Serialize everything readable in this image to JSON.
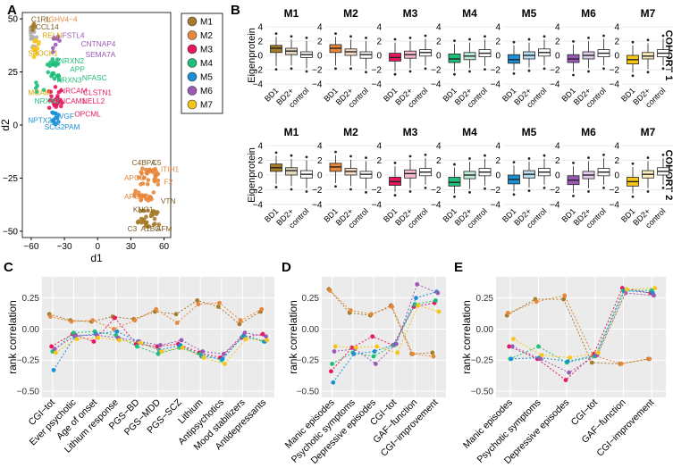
{
  "panel_labels": [
    "A",
    "B",
    "C",
    "D",
    "E"
  ],
  "colors": {
    "M1": "#a67c2a",
    "M2": "#e8873a",
    "M3": "#e8175d",
    "M4": "#1fbf7a",
    "M5": "#1a8fd6",
    "M6": "#9b59b6",
    "M7": "#f5c518",
    "grey": "#b0b0b0"
  },
  "chart_data": [
    {
      "id": "A",
      "type": "scatter",
      "xlabel": "d1",
      "ylabel": "d2",
      "xlim": [
        -68,
        66
      ],
      "ylim": [
        -53,
        53
      ],
      "xticks": [
        -60,
        -30,
        0,
        30,
        60
      ],
      "yticks": [
        -50,
        -25,
        0,
        25,
        50
      ],
      "legend": {
        "placement": "right",
        "entries": [
          "M1",
          "M2",
          "M3",
          "M4",
          "M5",
          "M6",
          "M7"
        ]
      },
      "annotations": [
        {
          "text": "C1RL",
          "module": "M1",
          "x": -60,
          "y": 48.5
        },
        {
          "text": "IGHV4−4",
          "module": "M2",
          "x": -46,
          "y": 48.5
        },
        {
          "text": "CCL14",
          "module": "M1",
          "x": -56,
          "y": 45
        },
        {
          "text": "RELN",
          "module": "M7",
          "x": -50,
          "y": 41
        },
        {
          "text": "FSTL4",
          "module": "M6",
          "x": -32,
          "y": 41
        },
        {
          "text": "CNTNAP4",
          "module": "M6",
          "x": -15,
          "y": 37
        },
        {
          "text": "SEMA7A",
          "module": "M6",
          "x": -11,
          "y": 32
        },
        {
          "text": "SPOCK1",
          "module": "M7",
          "x": -63,
          "y": 32.5
        },
        {
          "text": "NRXN2",
          "module": "M4",
          "x": -35,
          "y": 29
        },
        {
          "text": "APP",
          "module": "M4",
          "x": -25,
          "y": 25
        },
        {
          "text": "NFASC",
          "module": "M4",
          "x": -14,
          "y": 21
        },
        {
          "text": "NRXN3",
          "module": "M4",
          "x": -37,
          "y": 20
        },
        {
          "text": "MCAM",
          "module": "M7",
          "x": -63,
          "y": 14
        },
        {
          "text": "NRCAM",
          "module": "M3",
          "x": -34,
          "y": 15
        },
        {
          "text": "CLSTN1",
          "module": "M3",
          "x": -13,
          "y": 14
        },
        {
          "text": "NRXN1",
          "module": "M4",
          "x": -57,
          "y": 10
        },
        {
          "text": "NCAM1",
          "module": "M3",
          "x": -34,
          "y": 10
        },
        {
          "text": "NELL2",
          "module": "M3",
          "x": -14,
          "y": 10
        },
        {
          "text": "OPCML",
          "module": "M3",
          "x": -21,
          "y": 4
        },
        {
          "text": "NPTX2",
          "module": "M5",
          "x": -63,
          "y": 1
        },
        {
          "text": "VGF",
          "module": "M5",
          "x": -35,
          "y": 3
        },
        {
          "text": "SCG2",
          "module": "M5",
          "x": -48,
          "y": -2
        },
        {
          "text": "PAM",
          "module": "M5",
          "x": -30,
          "y": -2
        },
        {
          "text": "C4BPA",
          "module": "M1",
          "x": 31,
          "y": -19
        },
        {
          "text": "C5",
          "module": "M1",
          "x": 49,
          "y": -19
        },
        {
          "text": "ITIH1",
          "module": "M2",
          "x": 57,
          "y": -22
        },
        {
          "text": "APOB",
          "module": "M2",
          "x": 24,
          "y": -26
        },
        {
          "text": "F2",
          "module": "M2",
          "x": 60,
          "y": -28
        },
        {
          "text": "APOA4",
          "module": "M2",
          "x": 24,
          "y": -35
        },
        {
          "text": "VTN",
          "module": "M1",
          "x": 57,
          "y": -37
        },
        {
          "text": "KNG1",
          "module": "M1",
          "x": 32,
          "y": -41
        },
        {
          "text": "C3",
          "module": "M1",
          "x": 27,
          "y": -50
        },
        {
          "text": "A1BG",
          "module": "M1",
          "x": 39,
          "y": -50
        },
        {
          "text": "AFM",
          "module": "M1",
          "x": 53,
          "y": -50
        }
      ]
    },
    {
      "id": "B",
      "type": "boxplot",
      "ylabel": "Eigenprotein",
      "modules": [
        "M1",
        "M2",
        "M3",
        "M4",
        "M5",
        "M6",
        "M7"
      ],
      "groups": [
        "BD1",
        "BD2+",
        "control"
      ],
      "ylim": [
        -4.5,
        4.5
      ],
      "yticks": [
        -4,
        -2,
        0,
        2,
        4
      ],
      "cohorts": [
        {
          "name": "COHORT 1",
          "boxes": {
            "M1": [
              [
                -1.5,
                0.4,
                1.0,
                1.4,
                2.6
              ],
              [
                -1.4,
                0.1,
                0.6,
                1.0,
                2.2
              ],
              [
                -1.8,
                -0.3,
                0.1,
                0.5,
                2.0
              ]
            ],
            "M2": [
              [
                -1.4,
                0.4,
                1.0,
                1.5,
                2.6
              ],
              [
                -1.4,
                0.0,
                0.5,
                0.9,
                2.2
              ],
              [
                -1.9,
                -0.4,
                0.1,
                0.5,
                2.0
              ]
            ],
            "M3": [
              [
                -2.2,
                -0.8,
                -0.3,
                0.3,
                1.8
              ],
              [
                -1.8,
                -0.4,
                0.1,
                0.6,
                2.0
              ],
              [
                -1.4,
                -0.1,
                0.4,
                0.8,
                2.3
              ]
            ],
            "M4": [
              [
                -2.2,
                -1.0,
                -0.5,
                0.2,
                1.6
              ],
              [
                -1.8,
                -0.6,
                -0.1,
                0.4,
                1.8
              ],
              [
                -1.5,
                -0.2,
                0.3,
                0.8,
                2.2
              ]
            ],
            "M5": [
              [
                -2.1,
                -1.1,
                -0.6,
                0.1,
                1.4
              ],
              [
                -1.7,
                -0.5,
                0.0,
                0.5,
                1.8
              ],
              [
                -1.4,
                -0.1,
                0.4,
                0.9,
                2.2
              ]
            ],
            "M6": [
              [
                -2.3,
                -1.0,
                -0.5,
                0.1,
                1.5
              ],
              [
                -1.8,
                -0.5,
                0.0,
                0.5,
                2.0
              ],
              [
                -1.4,
                -0.2,
                0.3,
                0.8,
                2.3
              ]
            ],
            "M7": [
              [
                -2.4,
                -1.2,
                -0.6,
                0.0,
                1.4
              ],
              [
                -1.9,
                -0.5,
                -0.1,
                0.4,
                1.7
              ],
              [
                -1.4,
                -0.2,
                0.3,
                0.8,
                2.3
              ]
            ]
          }
        },
        {
          "name": "COHORT 2",
          "boxes": {
            "M1": [
              [
                -1.2,
                0.5,
                1.0,
                1.5,
                2.6
              ],
              [
                -1.5,
                0.0,
                0.6,
                1.0,
                2.2
              ],
              [
                -1.8,
                -0.4,
                0.1,
                0.6,
                2.0
              ]
            ],
            "M2": [
              [
                -1.1,
                0.5,
                1.1,
                1.6,
                2.7
              ],
              [
                -1.5,
                0.0,
                0.5,
                0.9,
                2.1
              ],
              [
                -1.9,
                -0.4,
                0.1,
                0.5,
                1.9
              ]
            ],
            "M3": [
              [
                -2.3,
                -1.4,
                -0.9,
                -0.3,
                1.2
              ],
              [
                -1.8,
                -0.4,
                0.2,
                0.7,
                2.1
              ],
              [
                -1.3,
                -0.1,
                0.4,
                0.9,
                2.3
              ]
            ],
            "M4": [
              [
                -2.5,
                -1.5,
                -1.0,
                -0.3,
                1.0
              ],
              [
                -1.9,
                -0.5,
                0.0,
                0.5,
                1.8
              ],
              [
                -1.4,
                -0.1,
                0.4,
                0.9,
                2.2
              ]
            ],
            "M5": [
              [
                -2.2,
                -1.2,
                -0.6,
                0.0,
                1.3
              ],
              [
                -1.7,
                -0.4,
                0.1,
                0.6,
                1.8
              ],
              [
                -1.3,
                -0.1,
                0.4,
                0.9,
                2.2
              ]
            ],
            "M6": [
              [
                -2.4,
                -1.3,
                -0.7,
                -0.1,
                1.2
              ],
              [
                -1.8,
                -0.5,
                0.0,
                0.5,
                1.9
              ],
              [
                -1.3,
                -0.1,
                0.4,
                0.9,
                2.3
              ]
            ],
            "M7": [
              [
                -2.5,
                -1.5,
                -0.9,
                -0.3,
                1.1
              ],
              [
                -1.8,
                -0.4,
                0.1,
                0.6,
                1.9
              ],
              [
                -1.3,
                0.0,
                0.5,
                1.0,
                2.3
              ]
            ]
          }
        }
      ]
    },
    {
      "id": "C",
      "type": "line",
      "ylabel": "rank correlation",
      "ylim": [
        -0.55,
        0.42
      ],
      "yticks": [
        0.25,
        0.0,
        -0.25,
        -0.5
      ],
      "ytick_labels": [
        "0.25",
        "0.00",
        "−0.25",
        "−0.50"
      ],
      "categories": [
        "CGI−tot",
        "Ever psychotic",
        "Age of onset",
        "Lithium response",
        "PGS−BD",
        "PGS−MDD",
        "PGS−SCZ",
        "Lithium",
        "Antipsychotics",
        "Mood stabilizers",
        "Antidepressants"
      ],
      "series": [
        {
          "name": "M1",
          "values": [
            0.12,
            0.07,
            0.06,
            0.1,
            0.08,
            0.14,
            0.12,
            0.23,
            0.18,
            0.04,
            0.14
          ]
        },
        {
          "name": "M2",
          "values": [
            0.1,
            0.06,
            0.07,
            0.0,
            0.07,
            0.16,
            0.05,
            0.2,
            0.21,
            0.07,
            0.16
          ]
        },
        {
          "name": "M3",
          "values": [
            -0.14,
            -0.04,
            -0.1,
            0.09,
            -0.12,
            -0.14,
            -0.12,
            -0.19,
            -0.23,
            -0.07,
            -0.04
          ]
        },
        {
          "name": "M4",
          "values": [
            -0.18,
            -0.03,
            -0.02,
            -0.05,
            -0.14,
            -0.2,
            -0.15,
            -0.2,
            -0.25,
            -0.06,
            -0.1
          ]
        },
        {
          "name": "M5",
          "values": [
            -0.33,
            -0.06,
            -0.04,
            -0.02,
            -0.1,
            -0.17,
            -0.13,
            -0.22,
            -0.24,
            -0.05,
            -0.1
          ]
        },
        {
          "name": "M6",
          "values": [
            -0.16,
            -0.05,
            -0.05,
            -0.07,
            -0.1,
            -0.13,
            -0.09,
            -0.18,
            -0.2,
            -0.03,
            -0.06
          ]
        },
        {
          "name": "M7",
          "values": [
            -0.19,
            -0.08,
            -0.07,
            -0.09,
            -0.11,
            -0.18,
            -0.15,
            -0.23,
            -0.28,
            -0.08,
            -0.09
          ]
        }
      ]
    },
    {
      "id": "D",
      "type": "line",
      "ylabel": "rank correlation",
      "ylim": [
        -0.55,
        0.42
      ],
      "yticks": [
        0.25,
        0.0,
        -0.25,
        -0.5
      ],
      "ytick_labels": [
        "0.25",
        "0.00",
        "−0.25",
        "−0.50"
      ],
      "categories": [
        "Manic episodes",
        "Psychotic symptoms",
        "Depressive episodes",
        "CGI−tot",
        "GAF−function",
        "CGI−improvement"
      ],
      "series": [
        {
          "name": "M1",
          "values": [
            0.32,
            0.13,
            0.11,
            0.19,
            -0.2,
            -0.19
          ]
        },
        {
          "name": "M2",
          "values": [
            0.31,
            0.15,
            0.12,
            0.18,
            -0.2,
            -0.22
          ]
        },
        {
          "name": "M3",
          "values": [
            -0.34,
            -0.15,
            -0.06,
            -0.13,
            0.18,
            0.21
          ]
        },
        {
          "name": "M4",
          "values": [
            -0.28,
            -0.19,
            -0.22,
            -0.13,
            0.2,
            0.23
          ]
        },
        {
          "name": "M5",
          "values": [
            -0.43,
            -0.2,
            -0.18,
            -0.12,
            0.25,
            0.3
          ]
        },
        {
          "name": "M6",
          "values": [
            -0.18,
            -0.16,
            -0.28,
            -0.12,
            0.36,
            0.29
          ]
        },
        {
          "name": "M7",
          "values": [
            -0.14,
            -0.15,
            -0.14,
            -0.19,
            0.19,
            0.14
          ]
        }
      ]
    },
    {
      "id": "E",
      "type": "line",
      "ylabel": "rank correlation",
      "ylim": [
        -0.55,
        0.42
      ],
      "yticks": [
        0.25,
        0.0,
        -0.25,
        -0.5
      ],
      "ytick_labels": [
        "0.25",
        "0.00",
        "−0.25",
        "−0.50"
      ],
      "categories": [
        "Manic episodes",
        "Psychotic symptoms",
        "Depressive episodes",
        "CGI−tot",
        "GAF−function",
        "CGI−improvement"
      ],
      "series": [
        {
          "name": "M1",
          "values": [
            0.11,
            0.24,
            0.24,
            -0.27,
            -0.28,
            -0.24
          ]
        },
        {
          "name": "M2",
          "values": [
            0.13,
            0.22,
            0.27,
            -0.21,
            -0.28,
            -0.24
          ]
        },
        {
          "name": "M3",
          "values": [
            -0.14,
            -0.24,
            -0.41,
            -0.2,
            0.33,
            0.29
          ]
        },
        {
          "name": "M4",
          "values": [
            -0.24,
            -0.14,
            -0.27,
            -0.22,
            0.31,
            0.31
          ]
        },
        {
          "name": "M5",
          "values": [
            -0.24,
            -0.23,
            -0.26,
            -0.21,
            0.31,
            0.29
          ]
        },
        {
          "name": "M6",
          "values": [
            -0.14,
            -0.24,
            -0.35,
            -0.21,
            0.29,
            0.27
          ]
        },
        {
          "name": "M7",
          "values": [
            -0.08,
            -0.21,
            -0.23,
            -0.19,
            0.32,
            0.33
          ]
        }
      ]
    }
  ]
}
